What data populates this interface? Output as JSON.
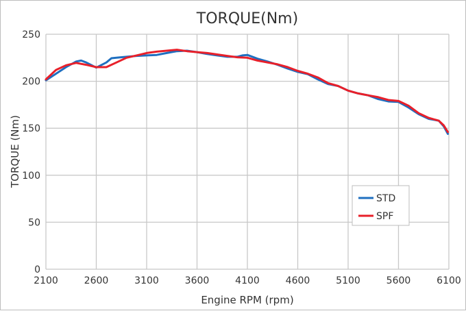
{
  "chart_data": {
    "type": "line",
    "title": "TORQUE(Nm)",
    "xlabel": "Engine RPM (rpm)",
    "ylabel": "TORQUE (Nm)",
    "xlim": [
      2100,
      6100
    ],
    "ylim": [
      0,
      250
    ],
    "xticks": [
      2100,
      2600,
      3100,
      3600,
      4100,
      4600,
      5100,
      5600,
      6100
    ],
    "yticks": [
      0,
      50,
      100,
      150,
      200,
      250
    ],
    "grid": true,
    "legend": "right-lower-inside",
    "series": [
      {
        "name": "STD",
        "color": "#1f6fc0",
        "x": [
          2100,
          2200,
          2300,
          2400,
          2450,
          2500,
          2600,
          2700,
          2750,
          2800,
          2900,
          3000,
          3100,
          3200,
          3300,
          3400,
          3500,
          3600,
          3700,
          3800,
          3900,
          4000,
          4050,
          4100,
          4200,
          4300,
          4400,
          4500,
          4600,
          4700,
          4800,
          4900,
          5000,
          5100,
          5200,
          5300,
          5400,
          5500,
          5600,
          5700,
          5800,
          5900,
          6000,
          6050,
          6090
        ],
        "y": [
          201,
          208,
          215,
          221,
          222,
          220,
          214.5,
          220,
          224.5,
          225,
          226,
          227,
          227.5,
          228,
          230,
          232,
          232.5,
          231,
          229,
          227.5,
          226,
          226,
          227.5,
          228,
          224,
          221,
          217.5,
          213.5,
          210,
          207.5,
          202,
          197,
          195,
          190,
          187,
          185,
          181,
          178.5,
          178,
          172,
          165,
          160,
          158,
          152,
          144
        ]
      },
      {
        "name": "SPF",
        "color": "#e8202a",
        "x": [
          2100,
          2200,
          2300,
          2400,
          2500,
          2600,
          2700,
          2800,
          2900,
          3000,
          3100,
          3200,
          3300,
          3400,
          3500,
          3600,
          3700,
          3800,
          3900,
          4000,
          4100,
          4200,
          4300,
          4400,
          4500,
          4600,
          4700,
          4800,
          4900,
          5000,
          5100,
          5200,
          5300,
          5400,
          5500,
          5600,
          5700,
          5800,
          5900,
          6000,
          6050,
          6090
        ],
        "y": [
          202,
          212,
          217,
          219.5,
          217.5,
          215,
          215,
          220,
          225,
          227.5,
          230,
          231.5,
          232.5,
          233.5,
          232,
          231,
          230,
          228.5,
          227,
          225.5,
          225,
          222,
          220,
          218,
          215,
          211,
          208,
          204,
          198,
          195,
          190,
          187,
          185,
          183,
          180,
          179,
          174,
          166,
          161,
          158,
          153,
          146
        ]
      }
    ]
  }
}
